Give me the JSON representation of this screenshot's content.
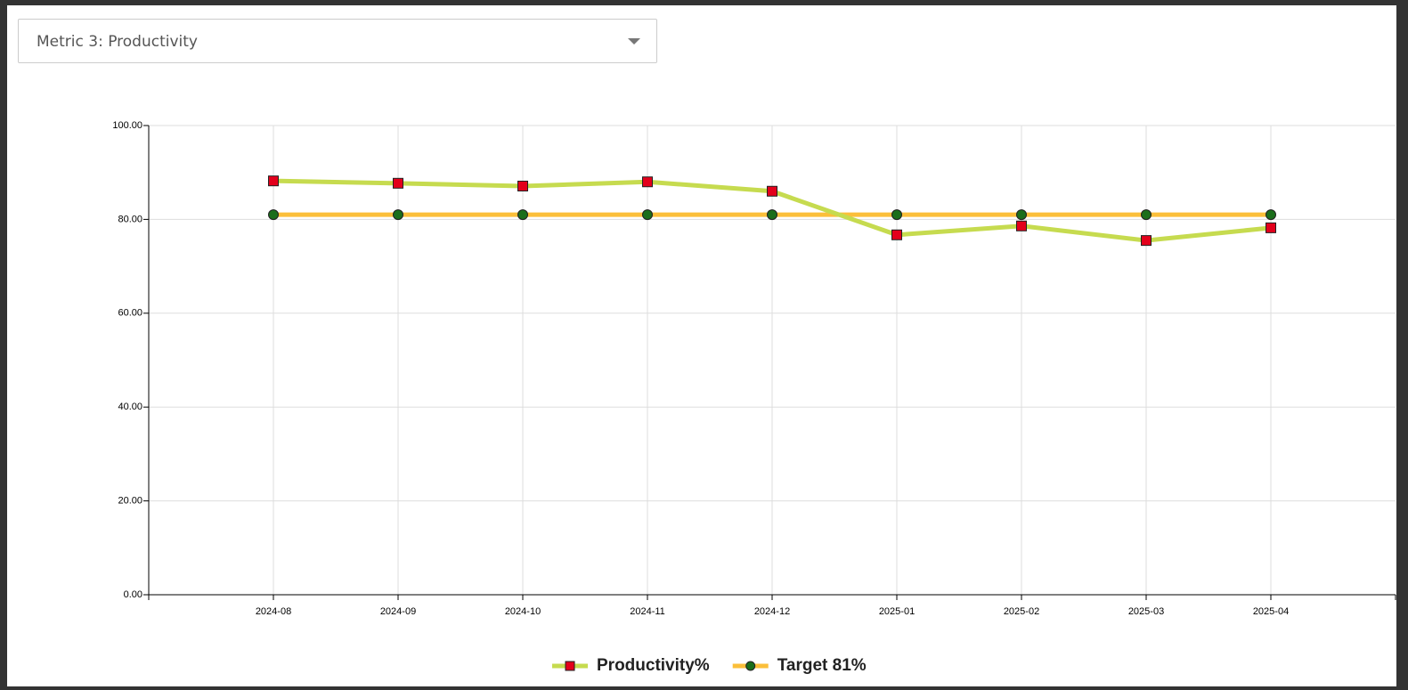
{
  "dropdown": {
    "selected": "Metric 3: Productivity"
  },
  "chart_data": {
    "type": "line",
    "categories": [
      "2024-08",
      "2024-09",
      "2024-10",
      "2024-11",
      "2024-12",
      "2025-01",
      "2025-02",
      "2025-03",
      "2025-04"
    ],
    "series": [
      {
        "name": "Productivity%",
        "color": "#c6db4f",
        "marker_color": "#e3001b",
        "marker": "square",
        "values": [
          88.2,
          87.7,
          87.1,
          88.0,
          86.0,
          76.7,
          78.6,
          75.5,
          78.2
        ]
      },
      {
        "name": "Target 81%",
        "color": "#fbbf3a",
        "marker_color": "#1b6e1b",
        "marker": "circle",
        "values": [
          81,
          81,
          81,
          81,
          81,
          81,
          81,
          81,
          81
        ]
      }
    ],
    "ylim": [
      0,
      100
    ],
    "yticks": [
      {
        "value": 0,
        "label": "0.00"
      },
      {
        "value": 20,
        "label": "20.00"
      },
      {
        "value": 40,
        "label": "40.00"
      },
      {
        "value": 60,
        "label": "60.00"
      },
      {
        "value": 80,
        "label": "80.00"
      },
      {
        "value": 100,
        "label": "100.00"
      }
    ],
    "grid": true
  }
}
